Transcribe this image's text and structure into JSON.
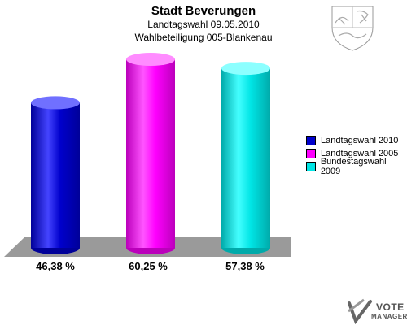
{
  "chart_data": {
    "type": "bar",
    "title": "Stadt Beverungen",
    "subtitle_1": "Landtagswahl 09.05.2010",
    "subtitle_2": "Wahlbeteiligung 005-Blankenau",
    "unit": "%",
    "ylim": [
      0,
      70
    ],
    "legend_position": "right",
    "series": [
      {
        "name": "Landtagswahl 2010",
        "value": 46.38,
        "label": "46,38 %",
        "color": "#0000cc",
        "light": "#4444ff",
        "dark": "#000099",
        "top": "#7070ff"
      },
      {
        "name": "Landtagswahl 2005",
        "value": 60.25,
        "label": "60,25 %",
        "color": "#ff00ff",
        "light": "#ff55ff",
        "dark": "#bb00bb",
        "top": "#ff8cff"
      },
      {
        "name": "Bundestagswahl 2009",
        "value": 57.38,
        "label": "57,38 %",
        "color": "#00e5e5",
        "light": "#44ffff",
        "dark": "#00aaaa",
        "top": "#8cffff"
      }
    ]
  },
  "branding": {
    "line1": "VOTE",
    "line2": "MANAGER"
  },
  "icons": {
    "coat_of_arms": "nrw-coat-of-arms-icon",
    "logo": "votemanager-logo-icon"
  }
}
